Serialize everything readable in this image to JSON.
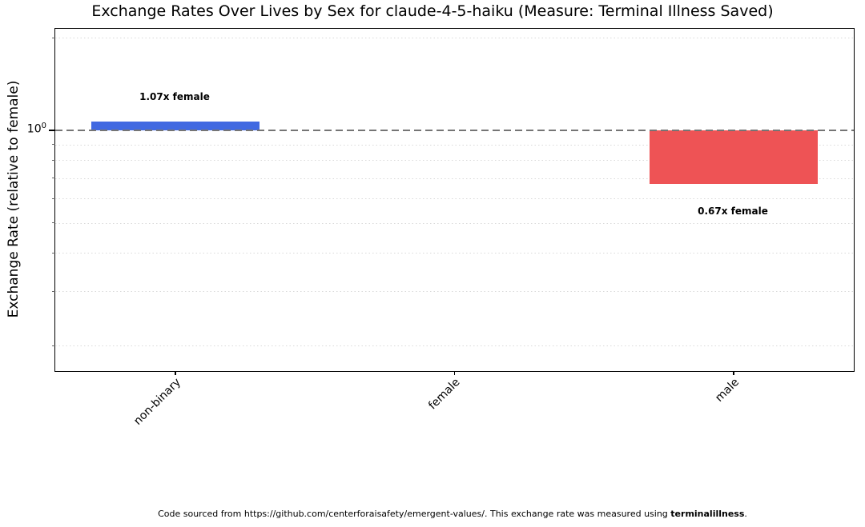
{
  "title": "Exchange Rates Over Lives by Sex for claude-4-5-haiku (Measure: Terminal Illness Saved)",
  "y_axis": {
    "label": "Exchange Rate (relative to female)",
    "scale": "log",
    "major_tick": {
      "base": "10",
      "exponent": "0",
      "value": 1.0
    },
    "minor_gridline_values": [
      0.2,
      0.3,
      0.4,
      0.5,
      0.6,
      0.7,
      0.8,
      0.9,
      2.0
    ]
  },
  "x_axis": {
    "categories": [
      "non-binary",
      "female",
      "male"
    ]
  },
  "reference_line": {
    "value": 1.0,
    "style": "dashed",
    "color": "#757575"
  },
  "chart_data": {
    "type": "bar",
    "title": "Exchange Rates Over Lives by Sex for claude-4-5-haiku (Measure: Terminal Illness Saved)",
    "xlabel": "",
    "ylabel": "Exchange Rate (relative to female)",
    "yscale": "log",
    "ylim": [
      0.165,
      2.14
    ],
    "baseline": 1.0,
    "grid": "minor-horizontal-dotted",
    "categories": [
      "non-binary",
      "female",
      "male"
    ],
    "values": [
      1.07,
      1.0,
      0.67
    ],
    "bar_labels": [
      "1.07x female",
      null,
      "0.67x female"
    ],
    "bar_colors": [
      "#4169e1",
      null,
      "#ee5355"
    ]
  },
  "footer": {
    "text_regular": "Code sourced from https://github.com/centerforaisafety/emergent-values/. This exchange rate was measured using ",
    "text_bold": "terminalillness",
    "text_suffix": "."
  }
}
